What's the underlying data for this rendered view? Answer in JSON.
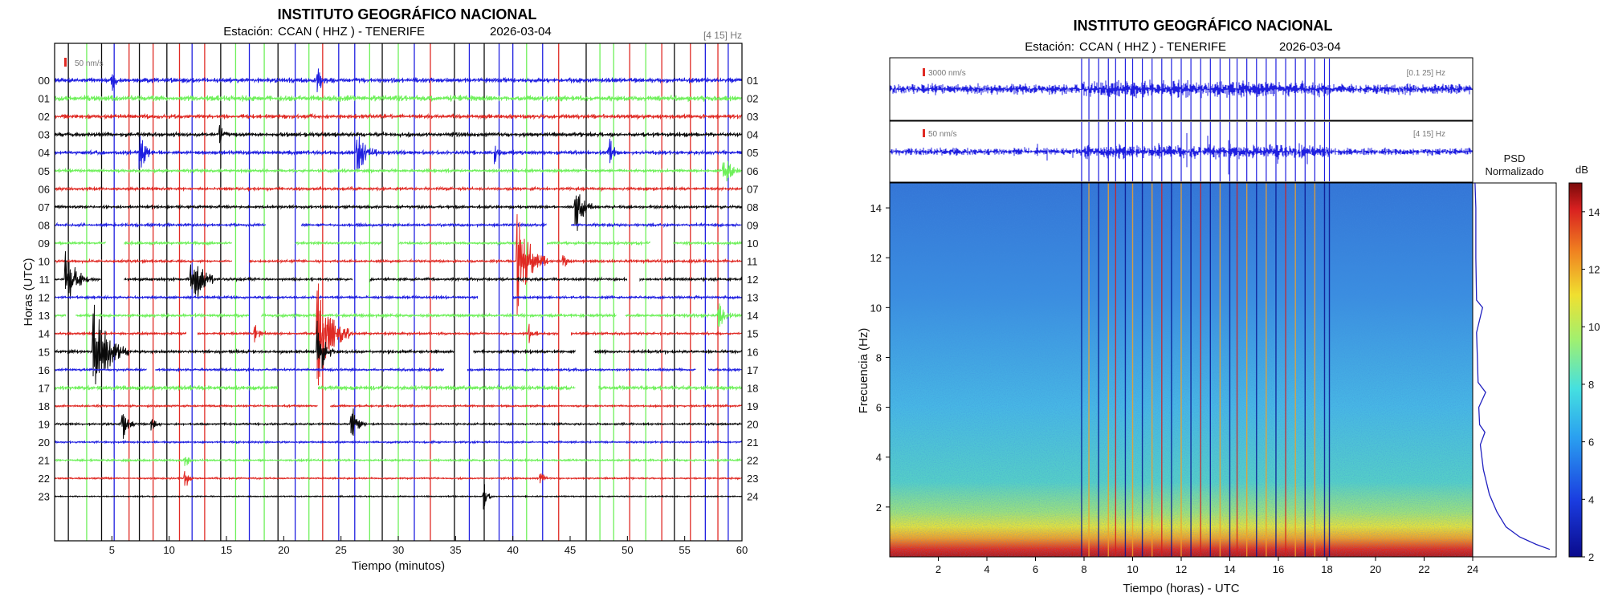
{
  "colors": {
    "blue": "#1f1fe0",
    "green": "#6ef05a",
    "red": "#e02a24",
    "black": "#0a0a0a",
    "dark_blue": "#0a1490",
    "spec_low": "#2f6fd8",
    "spec_mid": "#4cc6e8",
    "spec_hot": "#f0a028",
    "spec_max": "#d21e1e"
  },
  "chart_data": [
    {
      "type": "line",
      "subtype": "helicorder",
      "title": "INSTITUTO GEOGRÁFICO NACIONAL",
      "subtitle_label": "Estación:",
      "station": "CCAN ( HHZ ) - TENERIFE",
      "date": "2026-03-04",
      "filter_label": "[4 15] Hz",
      "scale_label": "50 nm/s",
      "xlabel": "Tiempo (minutos)",
      "ylabel": "Horas (UTC)",
      "xlim": [
        0,
        60
      ],
      "x_ticks": [
        5,
        10,
        15,
        20,
        25,
        30,
        35,
        40,
        45,
        50,
        55,
        60
      ],
      "left_row_labels": [
        "00",
        "01",
        "02",
        "03",
        "04",
        "05",
        "06",
        "07",
        "08",
        "09",
        "10",
        "11",
        "12",
        "13",
        "14",
        "15",
        "16",
        "17",
        "18",
        "19",
        "20",
        "21",
        "22",
        "23"
      ],
      "right_row_labels": [
        "01",
        "02",
        "03",
        "04",
        "05",
        "06",
        "07",
        "08",
        "09",
        "10",
        "11",
        "12",
        "13",
        "14",
        "15",
        "16",
        "17",
        "18",
        "19",
        "20",
        "21",
        "22",
        "23",
        "24"
      ],
      "row_colors": [
        "blue",
        "green",
        "red",
        "black",
        "blue",
        "green",
        "red",
        "black",
        "blue",
        "green",
        "red",
        "black",
        "blue",
        "green",
        "red",
        "black",
        "blue",
        "green",
        "red",
        "black",
        "blue",
        "green",
        "red",
        "black"
      ],
      "row_noise": [
        0.25,
        0.3,
        0.22,
        0.22,
        0.2,
        0.15,
        0.15,
        0.14,
        0.14,
        0.13,
        0.13,
        0.14,
        0.13,
        0.15,
        0.12,
        0.16,
        0.12,
        0.22,
        0.1,
        0.1,
        0.09,
        0.1,
        0.08,
        0.06
      ],
      "gaps": [
        {
          "row": 8,
          "start": 18.5,
          "end": 21.5
        },
        {
          "row": 8,
          "start": 43.0,
          "end": 45.0
        },
        {
          "row": 9,
          "start": 4.5,
          "end": 6.0
        },
        {
          "row": 9,
          "start": 15.5,
          "end": 21.0
        },
        {
          "row": 9,
          "start": 28.5,
          "end": 30.0
        },
        {
          "row": 9,
          "start": 41.0,
          "end": 43.0
        },
        {
          "row": 9,
          "start": 52.0,
          "end": 54.0
        },
        {
          "row": 10,
          "start": 15.5,
          "end": 17.0
        },
        {
          "row": 11,
          "start": 4.0,
          "end": 6.0
        },
        {
          "row": 11,
          "start": 26.0,
          "end": 27.5
        },
        {
          "row": 11,
          "start": 50.0,
          "end": 51.0
        },
        {
          "row": 12,
          "start": 37.0,
          "end": 40.0
        },
        {
          "row": 13,
          "start": 1.0,
          "end": 1.8
        },
        {
          "row": 13,
          "start": 17.0,
          "end": 18.0
        },
        {
          "row": 13,
          "start": 49.0,
          "end": 49.8
        },
        {
          "row": 14,
          "start": 11.5,
          "end": 12.5
        },
        {
          "row": 14,
          "start": 44.0,
          "end": 45.0
        },
        {
          "row": 15,
          "start": 35.0,
          "end": 36.5
        },
        {
          "row": 15,
          "start": 45.5,
          "end": 47.0
        },
        {
          "row": 16,
          "start": 8.0,
          "end": 8.8
        },
        {
          "row": 16,
          "start": 34.0,
          "end": 36.0
        },
        {
          "row": 16,
          "start": 56.0,
          "end": 57.0
        },
        {
          "row": 17,
          "start": 19.5,
          "end": 23.0
        },
        {
          "row": 17,
          "start": 45.5,
          "end": 47.5
        },
        {
          "row": 18,
          "start": 23.0,
          "end": 24.0
        }
      ],
      "events": [
        {
          "row": 0,
          "minute": 5.0,
          "amp": 0.55,
          "dur": 0.8
        },
        {
          "row": 0,
          "minute": 23.0,
          "amp": 0.6,
          "dur": 0.8
        },
        {
          "row": 3,
          "minute": 14.5,
          "amp": 0.5,
          "dur": 0.8
        },
        {
          "row": 4,
          "minute": 7.5,
          "amp": 0.9,
          "dur": 1.2
        },
        {
          "row": 4,
          "minute": 26.5,
          "amp": 1.1,
          "dur": 1.6
        },
        {
          "row": 4,
          "minute": 38.5,
          "amp": 0.5,
          "dur": 0.8
        },
        {
          "row": 4,
          "minute": 48.5,
          "amp": 0.6,
          "dur": 0.8
        },
        {
          "row": 5,
          "minute": 58.5,
          "amp": 0.8,
          "dur": 1.4
        },
        {
          "row": 7,
          "minute": 45.5,
          "amp": 1.4,
          "dur": 1.6
        },
        {
          "row": 10,
          "minute": 40.5,
          "amp": 2.6,
          "dur": 2.6
        },
        {
          "row": 10,
          "minute": 44.5,
          "amp": 0.4,
          "dur": 0.8
        },
        {
          "row": 11,
          "minute": 1.0,
          "amp": 1.6,
          "dur": 2.0
        },
        {
          "row": 11,
          "minute": 12.0,
          "amp": 1.9,
          "dur": 2.0
        },
        {
          "row": 13,
          "minute": 58.0,
          "amp": 0.7,
          "dur": 1.2
        },
        {
          "row": 14,
          "minute": 23.0,
          "amp": 2.6,
          "dur": 3.0
        },
        {
          "row": 14,
          "minute": 17.5,
          "amp": 0.5,
          "dur": 1.0
        },
        {
          "row": 14,
          "minute": 41.5,
          "amp": 0.5,
          "dur": 0.8
        },
        {
          "row": 15,
          "minute": 3.5,
          "amp": 2.4,
          "dur": 3.0
        },
        {
          "row": 15,
          "minute": 23.0,
          "amp": 1.6,
          "dur": 1.4
        },
        {
          "row": 19,
          "minute": 6.0,
          "amp": 0.8,
          "dur": 1.0
        },
        {
          "row": 19,
          "minute": 8.5,
          "amp": 0.4,
          "dur": 0.8
        },
        {
          "row": 19,
          "minute": 26.0,
          "amp": 0.9,
          "dur": 1.2
        },
        {
          "row": 21,
          "minute": 11.5,
          "amp": 0.4,
          "dur": 0.6
        },
        {
          "row": 22,
          "minute": 11.5,
          "amp": 0.5,
          "dur": 0.6
        },
        {
          "row": 22,
          "minute": 42.5,
          "amp": 0.4,
          "dur": 0.6
        },
        {
          "row": 23,
          "minute": 37.5,
          "amp": 0.7,
          "dur": 0.8
        }
      ],
      "markers": [
        {
          "minute": 1.2,
          "color": "black"
        },
        {
          "minute": 2.8,
          "color": "green"
        },
        {
          "minute": 4.1,
          "color": "black"
        },
        {
          "minute": 5.2,
          "color": "blue"
        },
        {
          "minute": 6.5,
          "color": "red"
        },
        {
          "minute": 7.4,
          "color": "black"
        },
        {
          "minute": 8.6,
          "color": "red"
        },
        {
          "minute": 9.8,
          "color": "black"
        },
        {
          "minute": 10.9,
          "color": "red"
        },
        {
          "minute": 12.0,
          "color": "blue"
        },
        {
          "minute": 13.1,
          "color": "red"
        },
        {
          "minute": 14.5,
          "color": "black"
        },
        {
          "minute": 15.8,
          "color": "green"
        },
        {
          "minute": 17.0,
          "color": "blue"
        },
        {
          "minute": 18.3,
          "color": "green"
        },
        {
          "minute": 19.5,
          "color": "black"
        },
        {
          "minute": 21.0,
          "color": "blue"
        },
        {
          "minute": 22.2,
          "color": "green"
        },
        {
          "minute": 23.4,
          "color": "red"
        },
        {
          "minute": 24.8,
          "color": "blue"
        },
        {
          "minute": 26.2,
          "color": "blue"
        },
        {
          "minute": 27.5,
          "color": "green"
        },
        {
          "minute": 28.6,
          "color": "black"
        },
        {
          "minute": 30.0,
          "color": "green"
        },
        {
          "minute": 31.4,
          "color": "blue"
        },
        {
          "minute": 32.8,
          "color": "red"
        },
        {
          "minute": 34.9,
          "color": "black"
        },
        {
          "minute": 36.2,
          "color": "blue"
        },
        {
          "minute": 37.5,
          "color": "black"
        },
        {
          "minute": 38.8,
          "color": "blue"
        },
        {
          "minute": 40.0,
          "color": "blue"
        },
        {
          "minute": 41.2,
          "color": "green"
        },
        {
          "minute": 42.6,
          "color": "blue"
        },
        {
          "minute": 44.0,
          "color": "red"
        },
        {
          "minute": 46.4,
          "color": "black"
        },
        {
          "minute": 47.6,
          "color": "green"
        },
        {
          "minute": 48.8,
          "color": "green"
        },
        {
          "minute": 50.2,
          "color": "red"
        },
        {
          "minute": 51.6,
          "color": "green"
        },
        {
          "minute": 53.0,
          "color": "red"
        },
        {
          "minute": 54.1,
          "color": "black"
        },
        {
          "minute": 55.5,
          "color": "red"
        },
        {
          "minute": 56.8,
          "color": "blue"
        },
        {
          "minute": 57.9,
          "color": "red"
        },
        {
          "minute": 58.8,
          "color": "blue"
        }
      ]
    },
    {
      "type": "heatmap",
      "subtype": "spectrogram",
      "title": "INSTITUTO GEOGRÁFICO NACIONAL",
      "subtitle_label": "Estación:",
      "station": "CCAN ( HHZ ) - TENERIFE",
      "date": "2026-03-04",
      "trace1": {
        "scale_label": "3000 nm/s",
        "filter_label": "[0.1 25] Hz"
      },
      "trace2": {
        "scale_label": "50 nm/s",
        "filter_label": "[4 15] Hz"
      },
      "xlabel": "Tiempo (horas) - UTC",
      "ylabel": "Frecuencia  (Hz)",
      "xlim": [
        0,
        24
      ],
      "ylim": [
        0,
        15
      ],
      "x_ticks": [
        2,
        4,
        6,
        8,
        10,
        12,
        14,
        16,
        18,
        20,
        22,
        24
      ],
      "y_ticks": [
        2,
        4,
        6,
        8,
        10,
        12,
        14
      ],
      "psd_title_1": "PSD",
      "psd_title_2": "Normalizado",
      "colorbar_label": "dB",
      "colorbar_range": [
        2,
        15
      ],
      "colorbar_ticks": [
        2,
        4,
        6,
        8,
        10,
        12,
        14
      ],
      "activity_window": [
        7.9,
        18.1
      ],
      "vertical_lines": [
        {
          "hour": 7.9,
          "color": "dark_blue"
        },
        {
          "hour": 8.2,
          "color": "spec_hot"
        },
        {
          "hour": 8.6,
          "color": "dark_blue"
        },
        {
          "hour": 9.0,
          "color": "spec_hot"
        },
        {
          "hour": 9.3,
          "color": "spec_max"
        },
        {
          "hour": 9.7,
          "color": "dark_blue"
        },
        {
          "hour": 10.0,
          "color": "spec_hot"
        },
        {
          "hour": 10.4,
          "color": "dark_blue"
        },
        {
          "hour": 10.8,
          "color": "spec_hot"
        },
        {
          "hour": 11.2,
          "color": "spec_max"
        },
        {
          "hour": 11.6,
          "color": "dark_blue"
        },
        {
          "hour": 12.0,
          "color": "spec_hot"
        },
        {
          "hour": 12.4,
          "color": "dark_blue"
        },
        {
          "hour": 12.8,
          "color": "spec_max"
        },
        {
          "hour": 13.2,
          "color": "dark_blue"
        },
        {
          "hour": 13.6,
          "color": "spec_hot"
        },
        {
          "hour": 14.0,
          "color": "dark_blue"
        },
        {
          "hour": 14.3,
          "color": "spec_max"
        },
        {
          "hour": 14.7,
          "color": "spec_hot"
        },
        {
          "hour": 15.1,
          "color": "dark_blue"
        },
        {
          "hour": 15.5,
          "color": "spec_hot"
        },
        {
          "hour": 15.9,
          "color": "dark_blue"
        },
        {
          "hour": 16.3,
          "color": "spec_max"
        },
        {
          "hour": 16.7,
          "color": "spec_hot"
        },
        {
          "hour": 17.1,
          "color": "dark_blue"
        },
        {
          "hour": 17.5,
          "color": "spec_hot"
        },
        {
          "hour": 17.9,
          "color": "dark_blue"
        },
        {
          "hour": 18.1,
          "color": "dark_blue"
        }
      ],
      "psd_curve": [
        {
          "hz": 0.3,
          "level": 1.0
        },
        {
          "hz": 0.5,
          "level": 0.82
        },
        {
          "hz": 0.8,
          "level": 0.6
        },
        {
          "hz": 1.2,
          "level": 0.42
        },
        {
          "hz": 1.8,
          "level": 0.3
        },
        {
          "hz": 2.5,
          "level": 0.2
        },
        {
          "hz": 3.5,
          "level": 0.12
        },
        {
          "hz": 4.5,
          "level": 0.08
        },
        {
          "hz": 5.0,
          "level": 0.14
        },
        {
          "hz": 5.3,
          "level": 0.07
        },
        {
          "hz": 6.0,
          "level": 0.06
        },
        {
          "hz": 6.6,
          "level": 0.15
        },
        {
          "hz": 7.0,
          "level": 0.05
        },
        {
          "hz": 8.0,
          "level": 0.04
        },
        {
          "hz": 9.0,
          "level": 0.03
        },
        {
          "hz": 10.0,
          "level": 0.11
        },
        {
          "hz": 10.3,
          "level": 0.03
        },
        {
          "hz": 12.0,
          "level": 0.02
        },
        {
          "hz": 14.0,
          "level": 0.02
        },
        {
          "hz": 15.0,
          "level": 0.01
        }
      ]
    }
  ]
}
